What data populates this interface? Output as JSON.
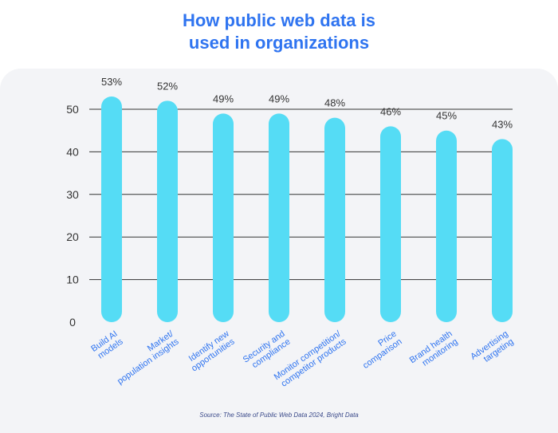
{
  "header": {
    "title_line1": "How public web data is",
    "title_line2": "used in organizations"
  },
  "footer": {
    "source": "Source: The State of Public Web Data 2024, Bright Data"
  },
  "colors": {
    "title": "#2f74f0",
    "bar": "#55dcf5",
    "x_label": "#2f74f0",
    "axis_text": "#333333",
    "grid": "#333333",
    "panel": "#f3f4f7"
  },
  "chart_data": {
    "type": "bar",
    "title": "How public web data is used in organizations",
    "categories": [
      [
        "Build AI",
        "models"
      ],
      [
        "Market/",
        "population insights"
      ],
      [
        "Identify new",
        "opportunities"
      ],
      [
        "Security and",
        "compliance"
      ],
      [
        "Monitor competition/",
        "competitor products"
      ],
      [
        "Price",
        "comparison"
      ],
      [
        "Brand health",
        "monitoring"
      ],
      [
        "Advertising",
        "targeting"
      ]
    ],
    "values": [
      53,
      52,
      49,
      49,
      48,
      46,
      45,
      43
    ],
    "data_labels": [
      "53%",
      "52%",
      "49%",
      "49%",
      "48%",
      "46%",
      "45%",
      "43%"
    ],
    "yticks": [
      0,
      10,
      20,
      30,
      40,
      50
    ],
    "ylim": [
      0,
      50
    ],
    "grid": true,
    "legend": "none"
  }
}
